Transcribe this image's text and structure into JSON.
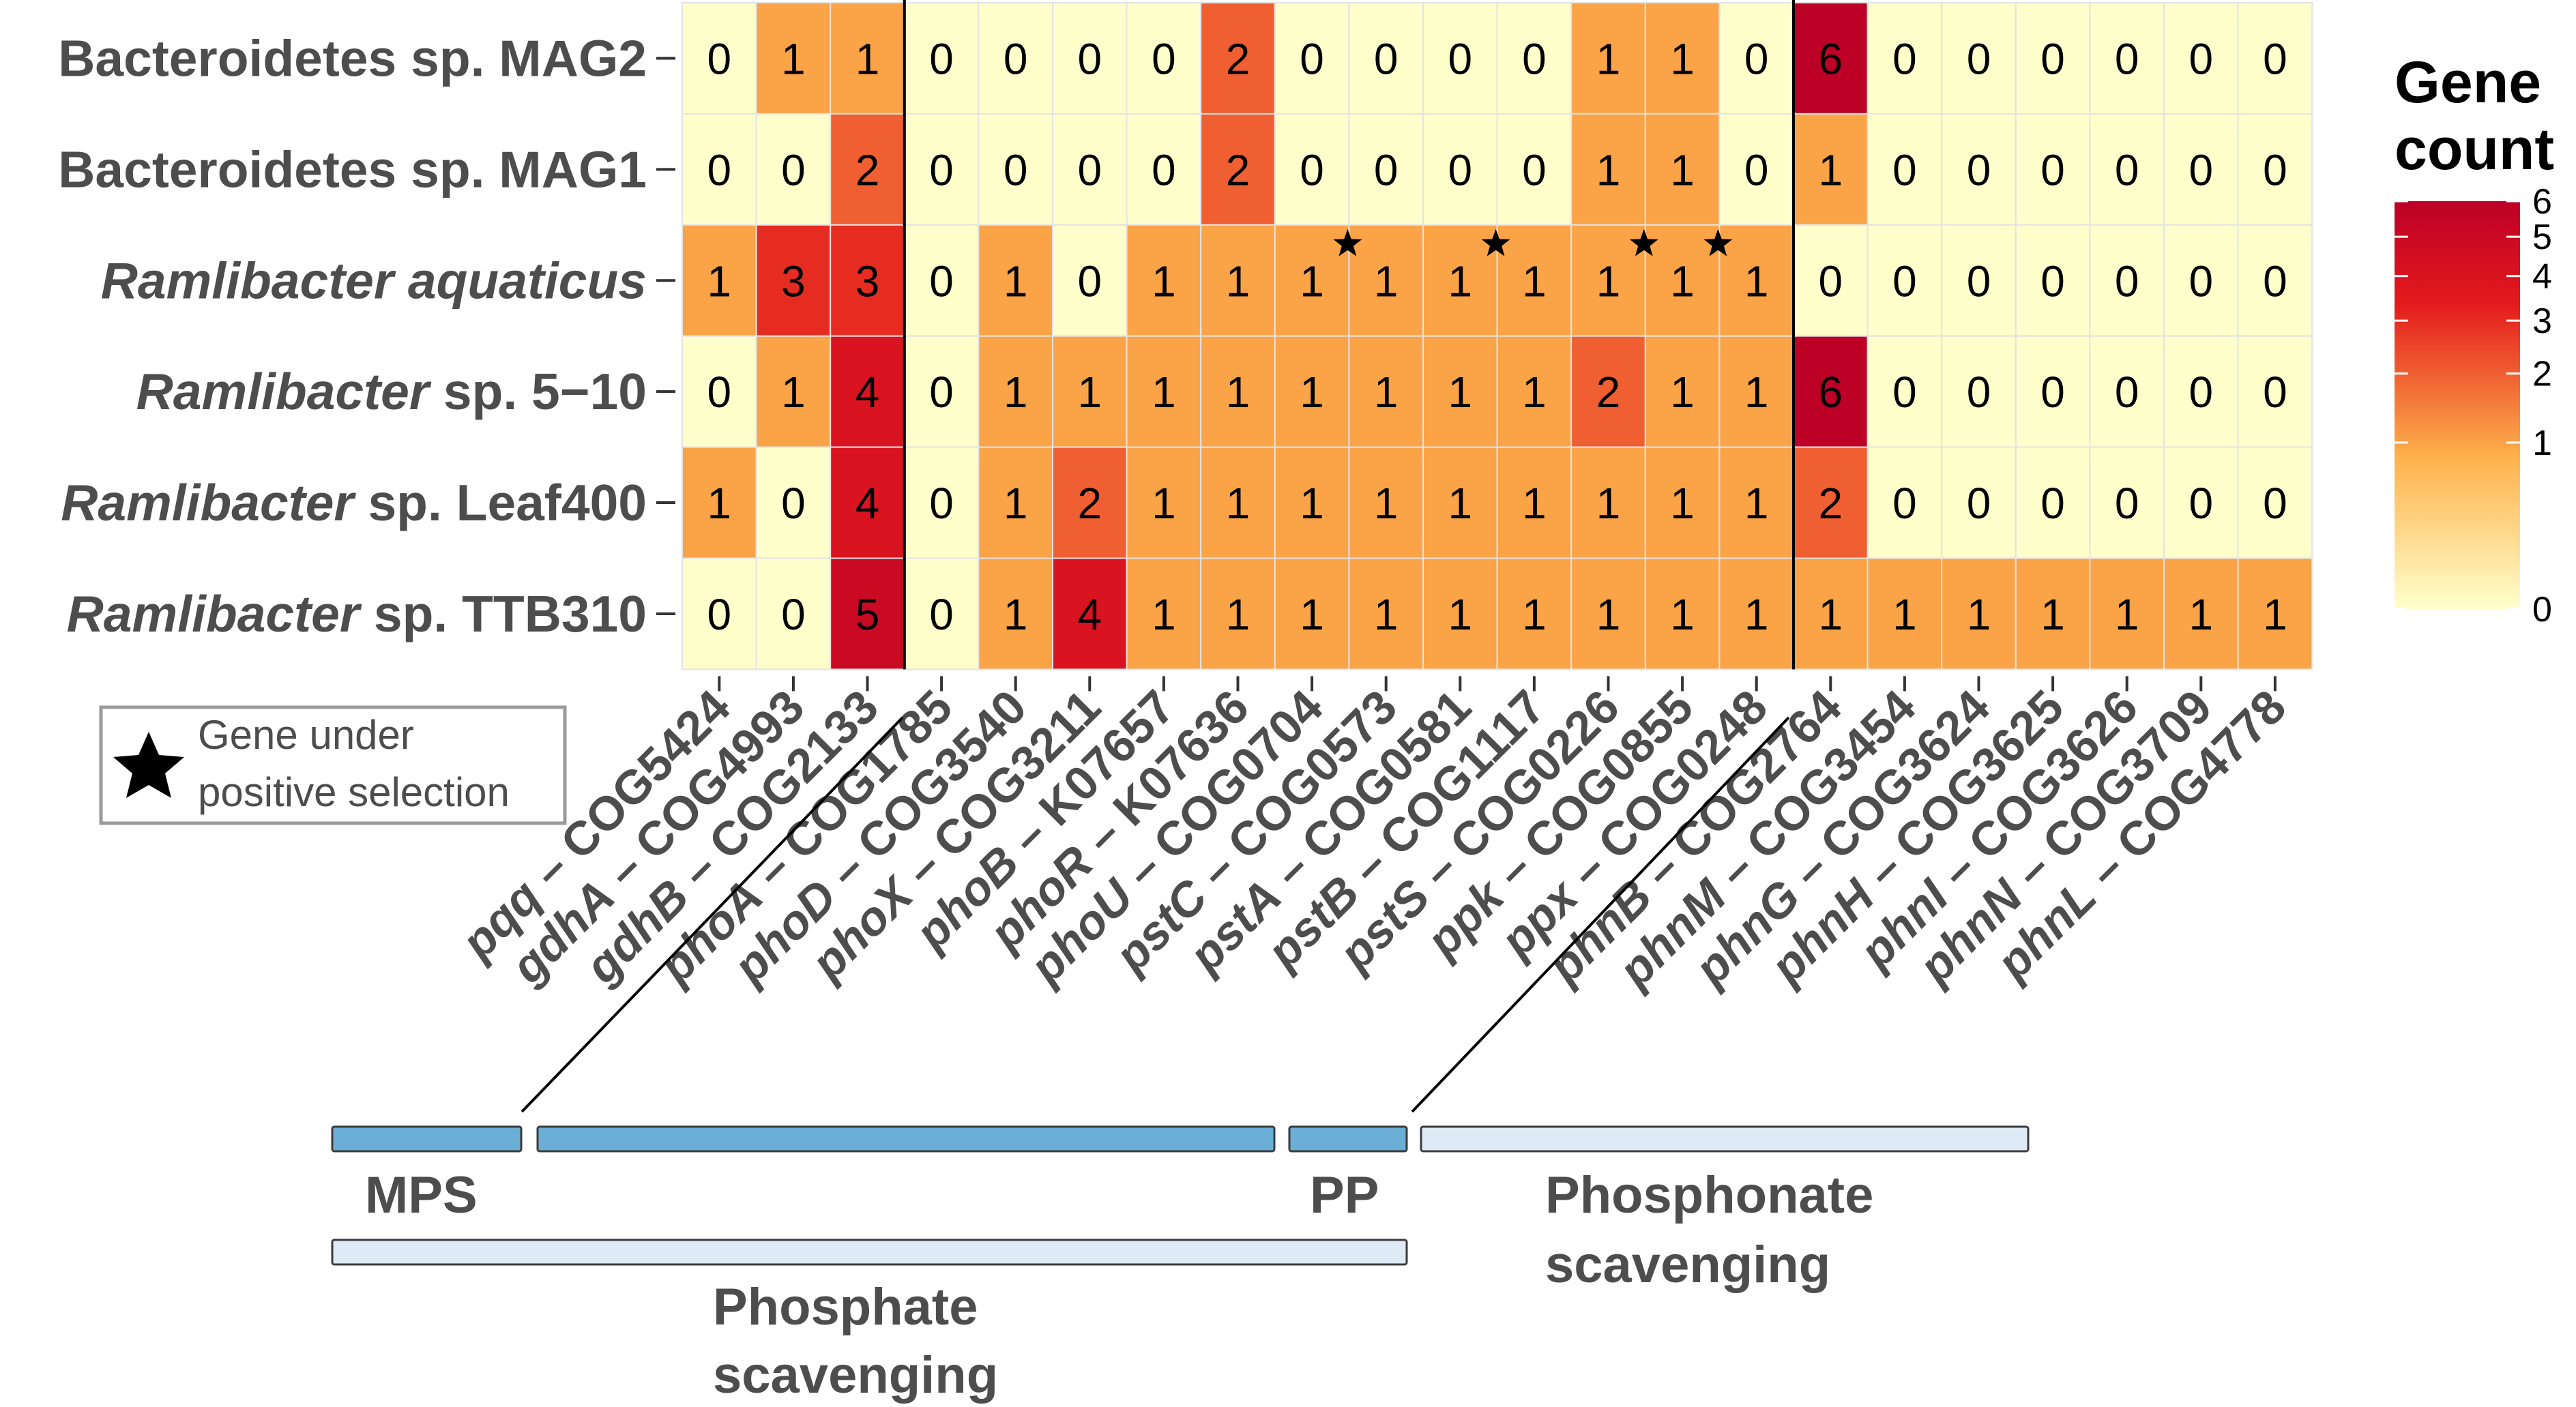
{
  "chart_data": {
    "type": "heatmap",
    "legend": {
      "title_line1": "Gene",
      "title_line2": "count",
      "ticks": [
        0,
        1,
        2,
        3,
        4,
        5,
        6
      ],
      "colors": [
        "#ffffcc",
        "#feb24c",
        "#e31a1c",
        "#bd0026"
      ],
      "placement": "right"
    },
    "rows": [
      {
        "parts": [
          {
            "text": "Bacteroidetes sp. MAG2",
            "italic": false
          }
        ],
        "values": [
          0,
          1,
          1,
          0,
          0,
          0,
          0,
          2,
          0,
          0,
          0,
          0,
          1,
          1,
          0,
          6,
          0,
          0,
          0,
          0,
          0,
          0
        ]
      },
      {
        "parts": [
          {
            "text": "Bacteroidetes sp. MAG1",
            "italic": false
          }
        ],
        "values": [
          0,
          0,
          2,
          0,
          0,
          0,
          0,
          2,
          0,
          0,
          0,
          0,
          1,
          1,
          0,
          1,
          0,
          0,
          0,
          0,
          0,
          0
        ]
      },
      {
        "parts": [
          {
            "text": "Ramlibacter aquaticus",
            "italic": true
          }
        ],
        "values": [
          1,
          3,
          3,
          0,
          1,
          0,
          1,
          1,
          1,
          1,
          1,
          1,
          1,
          1,
          1,
          0,
          0,
          0,
          0,
          0,
          0,
          0
        ]
      },
      {
        "parts": [
          {
            "text": "Ramlibacter",
            "italic": true
          },
          {
            "text": " sp. 5−10",
            "italic": false
          }
        ],
        "values": [
          0,
          1,
          4,
          0,
          1,
          1,
          1,
          1,
          1,
          1,
          1,
          1,
          2,
          1,
          1,
          6,
          0,
          0,
          0,
          0,
          0,
          0
        ]
      },
      {
        "parts": [
          {
            "text": "Ramlibacter",
            "italic": true
          },
          {
            "text": " sp. Leaf400",
            "italic": false
          }
        ],
        "values": [
          1,
          0,
          4,
          0,
          1,
          2,
          1,
          1,
          1,
          1,
          1,
          1,
          1,
          1,
          1,
          2,
          0,
          0,
          0,
          0,
          0,
          0
        ]
      },
      {
        "parts": [
          {
            "text": "Ramlibacter",
            "italic": true
          },
          {
            "text": " sp. TTB310",
            "italic": false
          }
        ],
        "values": [
          0,
          0,
          5,
          0,
          1,
          4,
          1,
          1,
          1,
          1,
          1,
          1,
          1,
          1,
          1,
          1,
          1,
          1,
          1,
          1,
          1,
          1
        ]
      }
    ],
    "columns": [
      {
        "gene": "pqq",
        "id": " – COG5424"
      },
      {
        "gene": "gdhA",
        "id": " – COG4993"
      },
      {
        "gene": "gdhB",
        "id": " – COG2133"
      },
      {
        "gene": "phoA",
        "id": " – COG1785"
      },
      {
        "gene": "phoD",
        "id": " – COG3540"
      },
      {
        "gene": "phoX",
        "id": " – COG3211"
      },
      {
        "gene": "phoB",
        "id": " – K07657"
      },
      {
        "gene": "phoR",
        "id": " – K07636"
      },
      {
        "gene": "phoU",
        "id": " – COG0704"
      },
      {
        "gene": "pstC",
        "id": " – COG0573"
      },
      {
        "gene": "pstA",
        "id": " – COG0581"
      },
      {
        "gene": "pstB",
        "id": " – COG1117"
      },
      {
        "gene": "pstS",
        "id": " – COG0226"
      },
      {
        "gene": "ppk",
        "id": " – COG0855"
      },
      {
        "gene": "ppx",
        "id": " – COG0248"
      },
      {
        "gene": "phnB",
        "id": " – COG2764"
      },
      {
        "gene": "phnM",
        "id": " – COG3454"
      },
      {
        "gene": "phnG",
        "id": " – COG3624"
      },
      {
        "gene": "phnH",
        "id": " – COG3625"
      },
      {
        "gene": "phnI",
        "id": " – COG3626"
      },
      {
        "gene": "phnN",
        "id": " – COG3709"
      },
      {
        "gene": "phnL",
        "id": " – COG4778"
      }
    ],
    "positive_selection": {
      "row": 2,
      "columns": [
        8,
        10,
        12,
        13
      ]
    },
    "positive_selection_key": {
      "line1": "Gene under",
      "line2": "positive selection"
    },
    "group_brackets": {
      "mps": {
        "label": "MPS",
        "first_col": 0,
        "last_col": 2
      },
      "mid": {
        "label": "",
        "first_col": 3,
        "last_col": 12
      },
      "pp": {
        "label": "PP",
        "first_col": 13,
        "last_col": 14
      },
      "phosphonate": {
        "label_line1": "Phosphonate",
        "label_line2": "scavenging",
        "first_col": 15,
        "last_col": 21
      },
      "phosphate": {
        "label_line1": "Phosphate",
        "label_line2": "scavenging",
        "first_col": 0,
        "last_col": 14
      }
    },
    "colors": {
      "bracket_dark": "#6baed6",
      "bracket_light": "#deebf7"
    }
  }
}
